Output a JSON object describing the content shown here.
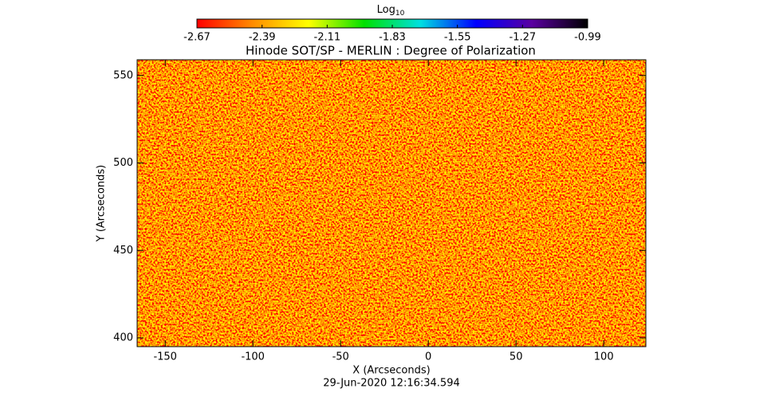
{
  "chart_data": {
    "type": "heatmap",
    "title": "Hinode SOT/SP - MERLIN : Degree of Polarization",
    "x_label": "X (Arcseconds)",
    "y_label": "Y (Arcseconds)",
    "footer": "29-Jun-2020 12:16:34.594",
    "xlim": [
      -166,
      124
    ],
    "ylim": [
      395,
      559
    ],
    "xticks": [
      -150,
      -100,
      -50,
      0,
      50,
      100
    ],
    "yticks": [
      400,
      450,
      500,
      550
    ],
    "colorbar": {
      "label": "Log",
      "label_subscript": "10",
      "lim": [
        -2.67,
        -0.99
      ],
      "ticks": [
        -2.67,
        -2.39,
        -2.11,
        -1.83,
        -1.55,
        -1.27,
        -0.99
      ],
      "colors": [
        "#ff0000",
        "#ff8c00",
        "#ffff00",
        "#00e000",
        "#00e0e0",
        "#0000ff",
        "#5a00a0",
        "#000000"
      ]
    }
  }
}
